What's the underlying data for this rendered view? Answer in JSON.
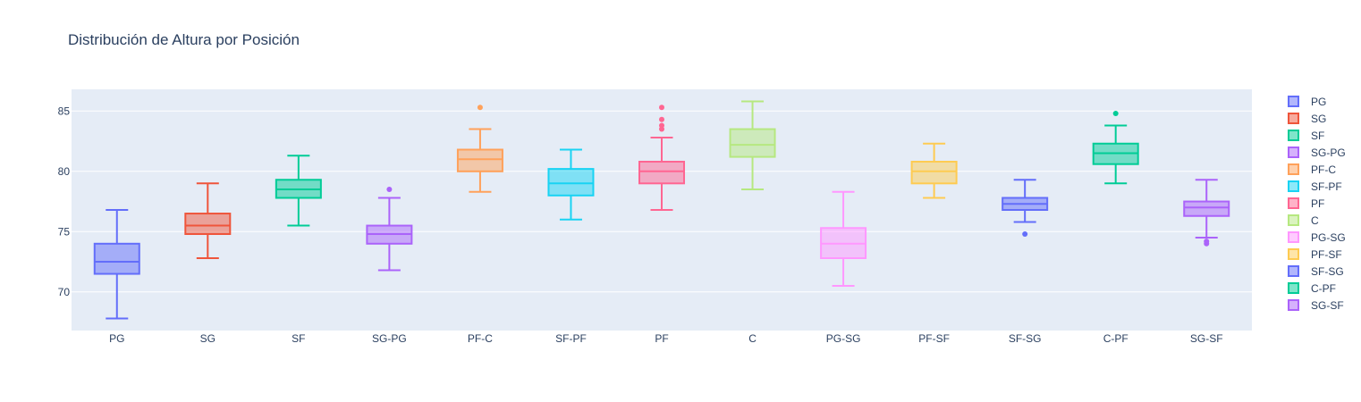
{
  "chart_data": {
    "type": "box",
    "title": "Distribución de Altura por Posición",
    "xlabel": "",
    "ylabel": "",
    "ylim": [
      66.8,
      86.8
    ],
    "yticks": [
      70,
      75,
      80,
      85
    ],
    "grid": true,
    "legend_position": "right",
    "plot_bg": "#e5ecf6",
    "series": [
      {
        "name": "PG",
        "color": "#636efa",
        "min": 67.8,
        "q1": 71.5,
        "median": 72.5,
        "q3": 74.0,
        "max": 76.8,
        "outliers": []
      },
      {
        "name": "SG",
        "color": "#ef553b",
        "min": 72.8,
        "q1": 74.8,
        "median": 75.5,
        "q3": 76.5,
        "max": 79.0,
        "outliers": []
      },
      {
        "name": "SF",
        "color": "#00cc96",
        "min": 75.5,
        "q1": 77.8,
        "median": 78.5,
        "q3": 79.3,
        "max": 81.3,
        "outliers": []
      },
      {
        "name": "SG-PG",
        "color": "#ab63fa",
        "min": 71.8,
        "q1": 74.0,
        "median": 74.8,
        "q3": 75.5,
        "max": 77.8,
        "outliers": [
          78.5
        ]
      },
      {
        "name": "PF-C",
        "color": "#ffa15a",
        "min": 78.3,
        "q1": 80.0,
        "median": 81.0,
        "q3": 81.8,
        "max": 83.5,
        "outliers": [
          85.3
        ]
      },
      {
        "name": "SF-PF",
        "color": "#19d3f3",
        "min": 76.0,
        "q1": 78.0,
        "median": 79.0,
        "q3": 80.2,
        "max": 81.8,
        "outliers": []
      },
      {
        "name": "PF",
        "color": "#ff6692",
        "min": 76.8,
        "q1": 79.0,
        "median": 80.0,
        "q3": 80.8,
        "max": 82.8,
        "outliers": [
          83.5,
          83.8,
          84.3,
          85.3
        ]
      },
      {
        "name": "C",
        "color": "#b6e880",
        "min": 78.5,
        "q1": 81.2,
        "median": 82.2,
        "q3": 83.5,
        "max": 85.8,
        "outliers": []
      },
      {
        "name": "PG-SG",
        "color": "#ff97ff",
        "min": 70.5,
        "q1": 72.8,
        "median": 74.0,
        "q3": 75.3,
        "max": 78.3,
        "outliers": []
      },
      {
        "name": "PF-SF",
        "color": "#fecb52",
        "min": 77.8,
        "q1": 79.0,
        "median": 80.0,
        "q3": 80.8,
        "max": 82.3,
        "outliers": []
      },
      {
        "name": "SF-SG",
        "color": "#636efa",
        "min": 75.8,
        "q1": 76.8,
        "median": 77.3,
        "q3": 77.8,
        "max": 79.3,
        "outliers": [
          74.8
        ]
      },
      {
        "name": "C-PF",
        "color": "#00cc96",
        "min": 79.0,
        "q1": 80.6,
        "median": 81.5,
        "q3": 82.3,
        "max": 83.8,
        "outliers": [
          84.8
        ]
      },
      {
        "name": "SG-SF",
        "color": "#ab63fa",
        "min": 74.5,
        "q1": 76.3,
        "median": 77.0,
        "q3": 77.5,
        "max": 79.3,
        "outliers": [
          74.0,
          74.2
        ]
      }
    ]
  }
}
